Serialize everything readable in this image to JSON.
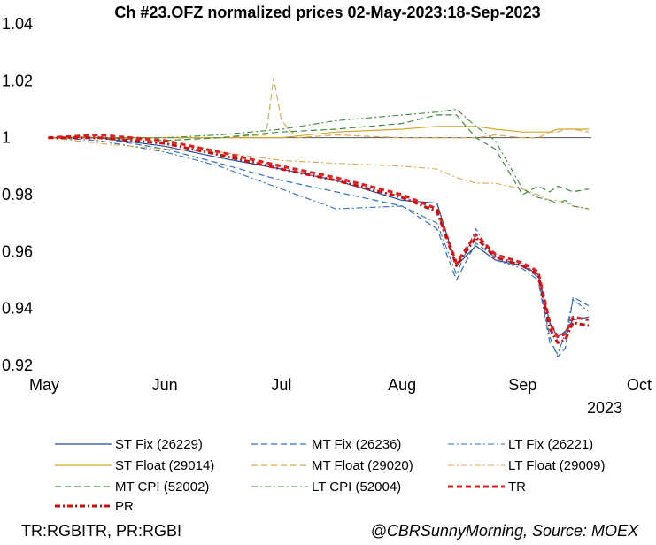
{
  "chart_data": {
    "type": "line",
    "title": "Ch #23.OFZ normalized prices 02-May-2023:18-Sep-2023",
    "year_label": "2023",
    "x_range": [
      "2023-05-01",
      "2023-10-01"
    ],
    "x_ticks": [
      {
        "label": "May",
        "date": "2023-05-01"
      },
      {
        "label": "Jun",
        "date": "2023-06-01"
      },
      {
        "label": "Jul",
        "date": "2023-07-01"
      },
      {
        "label": "Aug",
        "date": "2023-08-01"
      },
      {
        "label": "Sep",
        "date": "2023-09-01"
      },
      {
        "label": "Oct",
        "date": "2023-10-01"
      }
    ],
    "ylim": [
      0.92,
      1.04
    ],
    "y_ticks": [
      {
        "label": "1.04",
        "value": 1.04
      },
      {
        "label": "1.02",
        "value": 1.02
      },
      {
        "label": "1",
        "value": 1.0
      },
      {
        "label": "0.98",
        "value": 0.98
      },
      {
        "label": "0.96",
        "value": 0.96
      },
      {
        "label": "0.94",
        "value": 0.94
      },
      {
        "label": "0.92",
        "value": 0.92
      }
    ],
    "reference_line": 1.0,
    "legend_position": "bottom",
    "series": [
      {
        "name": "ST Fix (26229)",
        "color": "#1f4e9e",
        "dash": "",
        "width": 1.2,
        "points": [
          [
            "2023-05-02",
            1.0
          ],
          [
            "2023-05-15",
            1.0
          ],
          [
            "2023-06-01",
            0.997
          ],
          [
            "2023-06-15",
            0.993
          ],
          [
            "2023-07-01",
            0.989
          ],
          [
            "2023-07-15",
            0.985
          ],
          [
            "2023-08-01",
            0.978
          ],
          [
            "2023-08-10",
            0.977
          ],
          [
            "2023-08-15",
            0.955
          ],
          [
            "2023-08-20",
            0.962
          ],
          [
            "2023-08-25",
            0.957
          ],
          [
            "2023-09-01",
            0.955
          ],
          [
            "2023-09-05",
            0.952
          ],
          [
            "2023-09-08",
            0.935
          ],
          [
            "2023-09-10",
            0.93
          ],
          [
            "2023-09-12",
            0.932
          ],
          [
            "2023-09-14",
            0.936
          ],
          [
            "2023-09-18",
            0.937
          ]
        ]
      },
      {
        "name": "MT Fix (26236)",
        "color": "#2e6fc4",
        "dash": "7,4",
        "width": 1.2,
        "points": [
          [
            "2023-05-02",
            1.0
          ],
          [
            "2023-05-15",
            1.0
          ],
          [
            "2023-06-01",
            0.996
          ],
          [
            "2023-06-15",
            0.991
          ],
          [
            "2023-07-01",
            0.985
          ],
          [
            "2023-07-15",
            0.981
          ],
          [
            "2023-08-01",
            0.976
          ],
          [
            "2023-08-10",
            0.968
          ],
          [
            "2023-08-15",
            0.95
          ],
          [
            "2023-08-20",
            0.963
          ],
          [
            "2023-08-25",
            0.958
          ],
          [
            "2023-09-01",
            0.955
          ],
          [
            "2023-09-05",
            0.951
          ],
          [
            "2023-09-08",
            0.93
          ],
          [
            "2023-09-10",
            0.923
          ],
          [
            "2023-09-12",
            0.926
          ],
          [
            "2023-09-14",
            0.944
          ],
          [
            "2023-09-18",
            0.941
          ]
        ]
      },
      {
        "name": "LT Fix (26221)",
        "color": "#2e6fc4",
        "dash": "7,3,2,3",
        "width": 1.1,
        "points": [
          [
            "2023-05-02",
            1.0
          ],
          [
            "2023-05-15",
            0.999
          ],
          [
            "2023-06-01",
            0.995
          ],
          [
            "2023-06-15",
            0.99
          ],
          [
            "2023-07-01",
            0.982
          ],
          [
            "2023-07-15",
            0.975
          ],
          [
            "2023-08-01",
            0.976
          ],
          [
            "2023-08-10",
            0.97
          ],
          [
            "2023-08-15",
            0.952
          ],
          [
            "2023-08-20",
            0.968
          ],
          [
            "2023-08-25",
            0.957
          ],
          [
            "2023-09-01",
            0.954
          ],
          [
            "2023-09-05",
            0.95
          ],
          [
            "2023-09-08",
            0.928
          ],
          [
            "2023-09-10",
            0.924
          ],
          [
            "2023-09-12",
            0.931
          ],
          [
            "2023-09-14",
            0.943
          ],
          [
            "2023-09-18",
            0.939
          ]
        ]
      },
      {
        "name": "ST Float (29014)",
        "color": "#d4a72c",
        "dash": "",
        "width": 1.2,
        "points": [
          [
            "2023-05-02",
            1.0
          ],
          [
            "2023-05-15",
            1.0
          ],
          [
            "2023-06-01",
            1.0
          ],
          [
            "2023-06-15",
            1.0
          ],
          [
            "2023-07-01",
            1.0
          ],
          [
            "2023-07-15",
            1.002
          ],
          [
            "2023-08-01",
            1.003
          ],
          [
            "2023-08-10",
            1.004
          ],
          [
            "2023-08-15",
            1.004
          ],
          [
            "2023-08-20",
            1.004
          ],
          [
            "2023-08-25",
            1.003
          ],
          [
            "2023-09-01",
            1.002
          ],
          [
            "2023-09-05",
            1.002
          ],
          [
            "2023-09-08",
            1.002
          ],
          [
            "2023-09-10",
            1.003
          ],
          [
            "2023-09-12",
            1.003
          ],
          [
            "2023-09-14",
            1.003
          ],
          [
            "2023-09-18",
            1.003
          ]
        ]
      },
      {
        "name": "MT Float (29020)",
        "color": "#e0a850",
        "dash": "7,4",
        "width": 1.2,
        "points": [
          [
            "2023-05-02",
            1.0
          ],
          [
            "2023-05-15",
            1.0
          ],
          [
            "2023-06-01",
            0.999
          ],
          [
            "2023-06-15",
            1.0
          ],
          [
            "2023-06-27",
            1.001
          ],
          [
            "2023-06-29",
            1.021
          ],
          [
            "2023-07-01",
            1.006
          ],
          [
            "2023-07-05",
            1.0
          ],
          [
            "2023-07-15",
            1.001
          ],
          [
            "2023-08-01",
            1.0
          ],
          [
            "2023-08-15",
            1.0
          ],
          [
            "2023-08-20",
            1.0
          ],
          [
            "2023-08-25",
            1.001
          ],
          [
            "2023-09-01",
            1.0
          ],
          [
            "2023-09-05",
            1.0
          ],
          [
            "2023-09-08",
            1.002
          ],
          [
            "2023-09-10",
            1.002
          ],
          [
            "2023-09-12",
            1.003
          ],
          [
            "2023-09-14",
            1.003
          ],
          [
            "2023-09-18",
            1.002
          ]
        ]
      },
      {
        "name": "LT Float (29009)",
        "color": "#e0a850",
        "dash": "7,3,2,3",
        "width": 1.1,
        "points": [
          [
            "2023-05-02",
            1.0
          ],
          [
            "2023-05-15",
            0.998
          ],
          [
            "2023-06-01",
            0.996
          ],
          [
            "2023-06-15",
            0.995
          ],
          [
            "2023-07-01",
            0.992
          ],
          [
            "2023-07-15",
            0.991
          ],
          [
            "2023-08-01",
            0.99
          ],
          [
            "2023-08-10",
            0.989
          ],
          [
            "2023-08-15",
            0.986
          ],
          [
            "2023-08-20",
            0.984
          ],
          [
            "2023-08-25",
            0.984
          ],
          [
            "2023-09-01",
            0.982
          ],
          [
            "2023-09-05",
            0.98
          ],
          [
            "2023-09-08",
            0.978
          ],
          [
            "2023-09-10",
            0.978
          ],
          [
            "2023-09-12",
            0.977
          ],
          [
            "2023-09-14",
            0.976
          ],
          [
            "2023-09-18",
            0.975
          ]
        ]
      },
      {
        "name": "MT CPI (52002)",
        "color": "#3f8a3f",
        "dash": "7,4",
        "width": 1.2,
        "points": [
          [
            "2023-05-02",
            1.0
          ],
          [
            "2023-05-15",
            1.0
          ],
          [
            "2023-06-01",
            0.999
          ],
          [
            "2023-06-15",
            1.0
          ],
          [
            "2023-07-01",
            1.002
          ],
          [
            "2023-07-15",
            1.003
          ],
          [
            "2023-08-01",
            1.005
          ],
          [
            "2023-08-10",
            1.008
          ],
          [
            "2023-08-15",
            1.008
          ],
          [
            "2023-08-20",
            1.0
          ],
          [
            "2023-08-25",
            0.996
          ],
          [
            "2023-09-01",
            0.98
          ],
          [
            "2023-09-05",
            0.983
          ],
          [
            "2023-09-08",
            0.981
          ],
          [
            "2023-09-10",
            0.983
          ],
          [
            "2023-09-12",
            0.982
          ],
          [
            "2023-09-14",
            0.981
          ],
          [
            "2023-09-18",
            0.982
          ]
        ]
      },
      {
        "name": "LT CPI (52004)",
        "color": "#3f8a3f",
        "dash": "7,3,2,3",
        "width": 1.1,
        "points": [
          [
            "2023-05-02",
            1.0
          ],
          [
            "2023-05-15",
            1.0
          ],
          [
            "2023-06-01",
            1.0
          ],
          [
            "2023-06-15",
            1.001
          ],
          [
            "2023-07-01",
            1.003
          ],
          [
            "2023-07-15",
            1.006
          ],
          [
            "2023-08-01",
            1.008
          ],
          [
            "2023-08-10",
            1.009
          ],
          [
            "2023-08-15",
            1.01
          ],
          [
            "2023-08-20",
            1.004
          ],
          [
            "2023-08-25",
            0.999
          ],
          [
            "2023-09-01",
            0.982
          ],
          [
            "2023-09-05",
            0.979
          ],
          [
            "2023-09-08",
            0.978
          ],
          [
            "2023-09-10",
            0.977
          ],
          [
            "2023-09-12",
            0.978
          ],
          [
            "2023-09-14",
            0.976
          ],
          [
            "2023-09-18",
            0.975
          ]
        ]
      },
      {
        "name": "TR",
        "color": "#e02020",
        "dash": "6,4",
        "width": 3,
        "points": [
          [
            "2023-05-02",
            1.0
          ],
          [
            "2023-05-15",
            1.001
          ],
          [
            "2023-06-01",
            0.999
          ],
          [
            "2023-06-15",
            0.995
          ],
          [
            "2023-07-01",
            0.99
          ],
          [
            "2023-07-15",
            0.986
          ],
          [
            "2023-08-01",
            0.98
          ],
          [
            "2023-08-10",
            0.975
          ],
          [
            "2023-08-15",
            0.956
          ],
          [
            "2023-08-20",
            0.966
          ],
          [
            "2023-08-25",
            0.959
          ],
          [
            "2023-09-01",
            0.956
          ],
          [
            "2023-09-05",
            0.953
          ],
          [
            "2023-09-08",
            0.935
          ],
          [
            "2023-09-10",
            0.93
          ],
          [
            "2023-09-12",
            0.931
          ],
          [
            "2023-09-14",
            0.937
          ],
          [
            "2023-09-18",
            0.936
          ]
        ]
      },
      {
        "name": "PR",
        "color": "#cc1010",
        "dash": "6,3,2,3",
        "width": 3,
        "points": [
          [
            "2023-05-02",
            1.0
          ],
          [
            "2023-05-15",
            1.0
          ],
          [
            "2023-06-01",
            0.998
          ],
          [
            "2023-06-15",
            0.994
          ],
          [
            "2023-07-01",
            0.989
          ],
          [
            "2023-07-15",
            0.985
          ],
          [
            "2023-08-01",
            0.979
          ],
          [
            "2023-08-10",
            0.974
          ],
          [
            "2023-08-15",
            0.955
          ],
          [
            "2023-08-20",
            0.965
          ],
          [
            "2023-08-25",
            0.958
          ],
          [
            "2023-09-01",
            0.955
          ],
          [
            "2023-09-05",
            0.952
          ],
          [
            "2023-09-08",
            0.933
          ],
          [
            "2023-09-10",
            0.928
          ],
          [
            "2023-09-12",
            0.929
          ],
          [
            "2023-09-14",
            0.935
          ],
          [
            "2023-09-18",
            0.934
          ]
        ]
      }
    ]
  },
  "footer": {
    "left": "TR:RGBITR, PR:RGBI",
    "right": "@CBRSunnyMorning, Source: MOEX"
  }
}
